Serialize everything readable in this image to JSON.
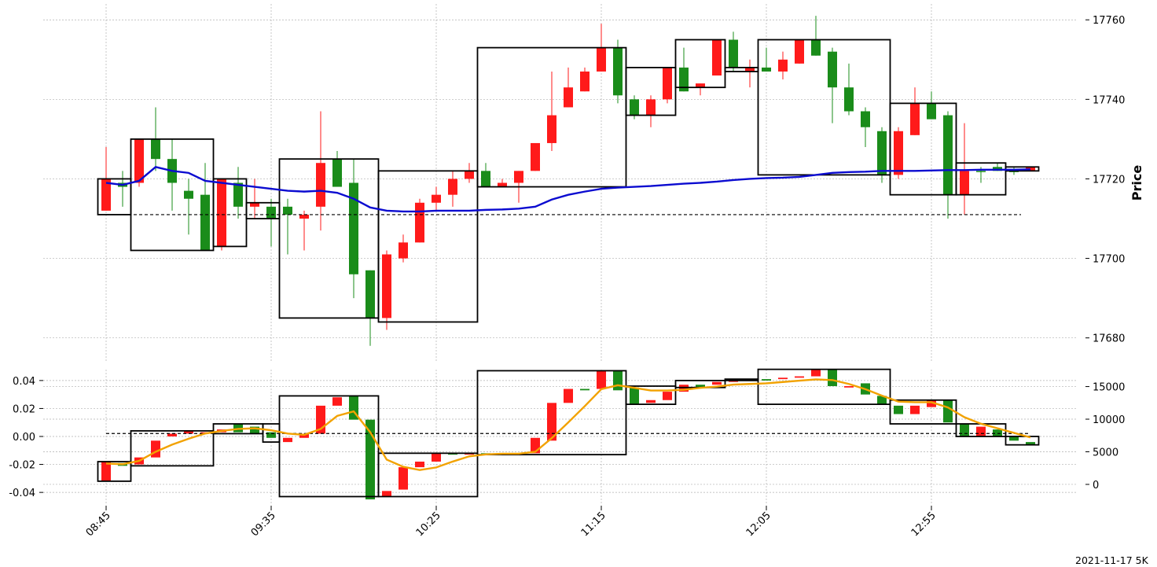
{
  "footer_label": "2021-11-17 5K",
  "colors": {
    "up": "#1a8c1a",
    "down": "#ff1a1a",
    "ma_price": "#0b0bd0",
    "ma_lower": "#f2a200",
    "box": "#000000",
    "grid": "#b0b0b0"
  },
  "chart_data": [
    {
      "type": "candlestick",
      "ylabel": "Price",
      "ylim": [
        17674,
        17764
      ],
      "y_ticks": [
        17680,
        17700,
        17720,
        17740,
        17760
      ],
      "x_ticks": [
        {
          "index": 0,
          "label": "08:45"
        },
        {
          "index": 10,
          "label": "09:35"
        },
        {
          "index": 20,
          "label": "10:25"
        },
        {
          "index": 30,
          "label": "11:15"
        },
        {
          "index": 40,
          "label": "12:05"
        },
        {
          "index": 50,
          "label": "12:55"
        }
      ],
      "grid": true,
      "candles": [
        {
          "o": 17720,
          "c": 17712,
          "h": 17728,
          "l": 17712,
          "dir": "down"
        },
        {
          "o": 17718,
          "c": 17719,
          "h": 17722,
          "l": 17713,
          "dir": "up"
        },
        {
          "o": 17730,
          "c": 17719,
          "h": 17730,
          "l": 17718,
          "dir": "down"
        },
        {
          "o": 17730,
          "c": 17725,
          "h": 17738,
          "l": 17722,
          "dir": "up"
        },
        {
          "o": 17725,
          "c": 17719,
          "h": 17730,
          "l": 17712,
          "dir": "up"
        },
        {
          "o": 17717,
          "c": 17715,
          "h": 17720,
          "l": 17706,
          "dir": "up"
        },
        {
          "o": 17716,
          "c": 17702,
          "h": 17724,
          "l": 17702,
          "dir": "up"
        },
        {
          "o": 17720,
          "c": 17703,
          "h": 17720,
          "l": 17702,
          "dir": "down"
        },
        {
          "o": 17719,
          "c": 17713,
          "h": 17723,
          "l": 17710,
          "dir": "up"
        },
        {
          "o": 17714,
          "c": 17713,
          "h": 17720,
          "l": 17710,
          "dir": "down"
        },
        {
          "o": 17713,
          "c": 17710,
          "h": 17715,
          "l": 17703,
          "dir": "up"
        },
        {
          "o": 17713,
          "c": 17711,
          "h": 17715,
          "l": 17701,
          "dir": "up"
        },
        {
          "o": 17711,
          "c": 17710,
          "h": 17712,
          "l": 17702,
          "dir": "down"
        },
        {
          "o": 17713,
          "c": 17724,
          "h": 17737,
          "l": 17707,
          "dir": "down"
        },
        {
          "o": 17725,
          "c": 17718,
          "h": 17727,
          "l": 17718,
          "dir": "up"
        },
        {
          "o": 17719,
          "c": 17696,
          "h": 17725,
          "l": 17690,
          "dir": "up"
        },
        {
          "o": 17697,
          "c": 17685,
          "h": 17697,
          "l": 17678,
          "dir": "up"
        },
        {
          "o": 17685,
          "c": 17701,
          "h": 17702,
          "l": 17682,
          "dir": "down"
        },
        {
          "o": 17700,
          "c": 17704,
          "h": 17706,
          "l": 17699,
          "dir": "down"
        },
        {
          "o": 17704,
          "c": 17714,
          "h": 17715,
          "l": 17704,
          "dir": "down"
        },
        {
          "o": 17714,
          "c": 17716,
          "h": 17718,
          "l": 17712,
          "dir": "down"
        },
        {
          "o": 17716,
          "c": 17720,
          "h": 17722,
          "l": 17713,
          "dir": "down"
        },
        {
          "o": 17720,
          "c": 17722,
          "h": 17724,
          "l": 17719,
          "dir": "down"
        },
        {
          "o": 17722,
          "c": 17718,
          "h": 17724,
          "l": 17718,
          "dir": "up"
        },
        {
          "o": 17718,
          "c": 17719,
          "h": 17720,
          "l": 17718,
          "dir": "down"
        },
        {
          "o": 17719,
          "c": 17722,
          "h": 17722,
          "l": 17714,
          "dir": "down"
        },
        {
          "o": 17722,
          "c": 17729,
          "h": 17729,
          "l": 17722,
          "dir": "down"
        },
        {
          "o": 17729,
          "c": 17736,
          "h": 17747,
          "l": 17727,
          "dir": "down"
        },
        {
          "o": 17738,
          "c": 17743,
          "h": 17748,
          "l": 17738,
          "dir": "down"
        },
        {
          "o": 17742,
          "c": 17747,
          "h": 17748,
          "l": 17742,
          "dir": "down"
        },
        {
          "o": 17747,
          "c": 17753,
          "h": 17759,
          "l": 17747,
          "dir": "down"
        },
        {
          "o": 17753,
          "c": 17741,
          "h": 17755,
          "l": 17739,
          "dir": "up"
        },
        {
          "o": 17740,
          "c": 17736,
          "h": 17741,
          "l": 17735,
          "dir": "up"
        },
        {
          "o": 17736,
          "c": 17740,
          "h": 17741,
          "l": 17733,
          "dir": "down"
        },
        {
          "o": 17740,
          "c": 17748,
          "h": 17748,
          "l": 17739,
          "dir": "down"
        },
        {
          "o": 17748,
          "c": 17742,
          "h": 17753,
          "l": 17742,
          "dir": "up"
        },
        {
          "o": 17743,
          "c": 17744,
          "h": 17744,
          "l": 17741,
          "dir": "down"
        },
        {
          "o": 17746,
          "c": 17755,
          "h": 17755,
          "l": 17746,
          "dir": "down"
        },
        {
          "o": 17755,
          "c": 17748,
          "h": 17757,
          "l": 17747,
          "dir": "up"
        },
        {
          "o": 17748,
          "c": 17747,
          "h": 17750,
          "l": 17743,
          "dir": "down"
        },
        {
          "o": 17748,
          "c": 17747,
          "h": 17753,
          "l": 17747,
          "dir": "up"
        },
        {
          "o": 17747,
          "c": 17750,
          "h": 17752,
          "l": 17745,
          "dir": "down"
        },
        {
          "o": 17749,
          "c": 17755,
          "h": 17755,
          "l": 17749,
          "dir": "down"
        },
        {
          "o": 17755,
          "c": 17751,
          "h": 17761,
          "l": 17751,
          "dir": "up"
        },
        {
          "o": 17752,
          "c": 17743,
          "h": 17753,
          "l": 17734,
          "dir": "up"
        },
        {
          "o": 17743,
          "c": 17737,
          "h": 17749,
          "l": 17736,
          "dir": "up"
        },
        {
          "o": 17737,
          "c": 17733,
          "h": 17738,
          "l": 17728,
          "dir": "up"
        },
        {
          "o": 17732,
          "c": 17721,
          "h": 17733,
          "l": 17719,
          "dir": "up"
        },
        {
          "o": 17721,
          "c": 17732,
          "h": 17733,
          "l": 17720,
          "dir": "down"
        },
        {
          "o": 17731,
          "c": 17739,
          "h": 17743,
          "l": 17731,
          "dir": "down"
        },
        {
          "o": 17739,
          "c": 17735,
          "h": 17742,
          "l": 17735,
          "dir": "up"
        },
        {
          "o": 17736,
          "c": 17716,
          "h": 17737,
          "l": 17710,
          "dir": "up"
        },
        {
          "o": 17716,
          "c": 17722,
          "h": 17734,
          "l": 17711,
          "dir": "down"
        },
        {
          "o": 17722,
          "c": 17722,
          "h": 17723,
          "l": 17719,
          "dir": "up"
        },
        {
          "o": 17723,
          "c": 17722,
          "h": 17724,
          "l": 17722,
          "dir": "up"
        },
        {
          "o": 17722,
          "c": 17722,
          "h": 17723,
          "l": 17721,
          "dir": "up"
        },
        {
          "o": 17722,
          "c": 17723,
          "h": 17723,
          "l": 17722,
          "dir": "down"
        }
      ],
      "moving_average": [
        17719,
        17718.5,
        17719.5,
        17723,
        17722,
        17721.5,
        17719.5,
        17719,
        17718.5,
        17718,
        17717.5,
        17717,
        17716.8,
        17717,
        17716.5,
        17715,
        17712.8,
        17712,
        17711.8,
        17711.8,
        17712,
        17712,
        17712,
        17712.2,
        17712.3,
        17712.5,
        17713,
        17714.8,
        17716,
        17716.8,
        17717.5,
        17717.8,
        17718,
        17718.2,
        17718.5,
        17718.8,
        17719,
        17719.3,
        17719.7,
        17720,
        17720.2,
        17720.3,
        17720.5,
        17721,
        17721.5,
        17721.7,
        17721.8,
        17722,
        17722,
        17722,
        17722.1,
        17722.2,
        17722.2,
        17722.3,
        17722.3,
        17722.3,
        17722.4
      ],
      "reference_line": 17711,
      "boxes": [
        {
          "i0": 0,
          "i1": 1,
          "top": 17720,
          "bottom": 17711
        },
        {
          "i0": 2,
          "i1": 6,
          "top": 17730,
          "bottom": 17702
        },
        {
          "i0": 7,
          "i1": 8,
          "top": 17720,
          "bottom": 17703
        },
        {
          "i0": 9,
          "i1": 10,
          "top": 17714,
          "bottom": 17710
        },
        {
          "i0": 11,
          "i1": 16,
          "top": 17725,
          "bottom": 17685
        },
        {
          "i0": 17,
          "i1": 22,
          "top": 17722,
          "bottom": 17684
        },
        {
          "i0": 23,
          "i1": 31,
          "top": 17753,
          "bottom": 17718
        },
        {
          "i0": 32,
          "i1": 34,
          "top": 17748,
          "bottom": 17736
        },
        {
          "i0": 35,
          "i1": 37,
          "top": 17755,
          "bottom": 17743
        },
        {
          "i0": 38,
          "i1": 39,
          "top": 17748,
          "bottom": 17747
        },
        {
          "i0": 40,
          "i1": 47,
          "top": 17755,
          "bottom": 17721
        },
        {
          "i0": 48,
          "i1": 51,
          "top": 17739,
          "bottom": 17716
        },
        {
          "i0": 52,
          "i1": 54,
          "top": 17724,
          "bottom": 17716
        },
        {
          "i0": 55,
          "i1": 56,
          "top": 17723,
          "bottom": 17722
        }
      ]
    },
    {
      "type": "bar",
      "ylim_left": [
        -0.0478,
        0.0478
      ],
      "y_ticks_left": [
        -0.04,
        -0.02,
        0.0,
        0.02,
        0.04
      ],
      "ylim_right": [
        -2900,
        17600
      ],
      "y_ticks_right": [
        0,
        5000,
        10000,
        15000
      ],
      "grid": true,
      "bars": [
        {
          "o": -0.018,
          "c": -0.032,
          "dir": "down"
        },
        {
          "o": -0.021,
          "c": -0.019,
          "dir": "up"
        },
        {
          "o": -0.015,
          "c": -0.02,
          "dir": "down"
        },
        {
          "o": -0.003,
          "c": -0.015,
          "dir": "down"
        },
        {
          "o": 0.002,
          "c": 0.0,
          "dir": "down"
        },
        {
          "o": 0.004,
          "c": 0.002,
          "dir": "down"
        },
        {
          "o": 0.003,
          "c": 0.002,
          "dir": "down"
        },
        {
          "o": 0.005,
          "c": 0.003,
          "dir": "down"
        },
        {
          "o": 0.009,
          "c": 0.003,
          "dir": "up"
        },
        {
          "o": 0.007,
          "c": 0.002,
          "dir": "up"
        },
        {
          "o": 0.003,
          "c": -0.001,
          "dir": "up"
        },
        {
          "o": -0.001,
          "c": -0.004,
          "dir": "down"
        },
        {
          "o": 0.002,
          "c": -0.001,
          "dir": "down"
        },
        {
          "o": 0.022,
          "c": 0.002,
          "dir": "down"
        },
        {
          "o": 0.028,
          "c": 0.022,
          "dir": "down"
        },
        {
          "o": 0.029,
          "c": 0.012,
          "dir": "up"
        },
        {
          "o": 0.012,
          "c": -0.045,
          "dir": "up"
        },
        {
          "o": -0.039,
          "c": -0.043,
          "dir": "down"
        },
        {
          "o": -0.022,
          "c": -0.038,
          "dir": "down"
        },
        {
          "o": -0.018,
          "c": -0.022,
          "dir": "down"
        },
        {
          "o": -0.012,
          "c": -0.018,
          "dir": "down"
        },
        {
          "o": -0.012,
          "c": -0.013,
          "dir": "up"
        },
        {
          "o": -0.012,
          "c": -0.013,
          "dir": "down"
        },
        {
          "o": -0.012,
          "c": -0.013,
          "dir": "up"
        },
        {
          "o": -0.012,
          "c": -0.013,
          "dir": "down"
        },
        {
          "o": -0.012,
          "c": -0.013,
          "dir": "down"
        },
        {
          "o": -0.001,
          "c": -0.012,
          "dir": "down"
        },
        {
          "o": 0.024,
          "c": -0.003,
          "dir": "down"
        },
        {
          "o": 0.034,
          "c": 0.024,
          "dir": "down"
        },
        {
          "o": 0.034,
          "c": 0.033,
          "dir": "up"
        },
        {
          "o": 0.047,
          "c": 0.034,
          "dir": "down"
        },
        {
          "o": 0.047,
          "c": 0.033,
          "dir": "up"
        },
        {
          "o": 0.035,
          "c": 0.023,
          "dir": "up"
        },
        {
          "o": 0.026,
          "c": 0.024,
          "dir": "down"
        },
        {
          "o": 0.032,
          "c": 0.026,
          "dir": "down"
        },
        {
          "o": 0.037,
          "c": 0.032,
          "dir": "down"
        },
        {
          "o": 0.037,
          "c": 0.035,
          "dir": "up"
        },
        {
          "o": 0.039,
          "c": 0.037,
          "dir": "down"
        },
        {
          "o": 0.04,
          "c": 0.039,
          "dir": "down"
        },
        {
          "o": 0.041,
          "c": 0.04,
          "dir": "down"
        },
        {
          "o": 0.041,
          "c": 0.04,
          "dir": "up"
        },
        {
          "o": 0.042,
          "c": 0.041,
          "dir": "down"
        },
        {
          "o": 0.043,
          "c": 0.042,
          "dir": "down"
        },
        {
          "o": 0.048,
          "c": 0.043,
          "dir": "down"
        },
        {
          "o": 0.048,
          "c": 0.036,
          "dir": "up"
        },
        {
          "o": 0.036,
          "c": 0.035,
          "dir": "down"
        },
        {
          "o": 0.038,
          "c": 0.03,
          "dir": "up"
        },
        {
          "o": 0.029,
          "c": 0.023,
          "dir": "up"
        },
        {
          "o": 0.022,
          "c": 0.016,
          "dir": "up"
        },
        {
          "o": 0.022,
          "c": 0.016,
          "dir": "down"
        },
        {
          "o": 0.026,
          "c": 0.021,
          "dir": "down"
        },
        {
          "o": 0.026,
          "c": 0.01,
          "dir": "up"
        },
        {
          "o": 0.009,
          "c": 0.0,
          "dir": "up"
        },
        {
          "o": 0.007,
          "c": 0.0,
          "dir": "down"
        },
        {
          "o": 0.005,
          "c": 0.0,
          "dir": "up"
        },
        {
          "o": 0.0,
          "c": -0.003,
          "dir": "up"
        },
        {
          "o": -0.004,
          "c": -0.006,
          "dir": "up"
        }
      ],
      "moving_average_right": [
        3200,
        3100,
        3600,
        5000,
        6100,
        7000,
        7800,
        8200,
        8500,
        8600,
        8300,
        7800,
        7600,
        8500,
        10500,
        11200,
        8000,
        3800,
        2700,
        2200,
        2600,
        3500,
        4300,
        4600,
        4700,
        4700,
        5000,
        7100,
        9500,
        12000,
        14600,
        15200,
        14800,
        14400,
        14400,
        14500,
        14800,
        15000,
        15300,
        15400,
        15500,
        15700,
        15900,
        16100,
        16000,
        15400,
        14600,
        13600,
        12700,
        12600,
        12600,
        11800,
        10300,
        9300,
        8600,
        7900,
        7200
      ],
      "reference_line_right": 7800,
      "boxes": [
        {
          "i0": 0,
          "i1": 1,
          "top": -0.018,
          "bottom": -0.032
        },
        {
          "i0": 2,
          "i1": 6,
          "top": 0.004,
          "bottom": -0.021
        },
        {
          "i0": 7,
          "i1": 9,
          "top": 0.009,
          "bottom": 0.002
        },
        {
          "i0": 10,
          "i1": 10,
          "top": 0.009,
          "bottom": -0.004
        },
        {
          "i0": 11,
          "i1": 16,
          "top": 0.029,
          "bottom": -0.043
        },
        {
          "i0": 17,
          "i1": 22,
          "top": -0.012,
          "bottom": -0.043
        },
        {
          "i0": 23,
          "i1": 31,
          "top": 0.047,
          "bottom": -0.013
        },
        {
          "i0": 32,
          "i1": 34,
          "top": 0.036,
          "bottom": 0.023
        },
        {
          "i0": 35,
          "i1": 37,
          "top": 0.04,
          "bottom": 0.035
        },
        {
          "i0": 38,
          "i1": 39,
          "top": 0.041,
          "bottom": 0.04
        },
        {
          "i0": 40,
          "i1": 47,
          "top": 0.048,
          "bottom": 0.023
        },
        {
          "i0": 48,
          "i1": 51,
          "top": 0.026,
          "bottom": 0.009
        },
        {
          "i0": 52,
          "i1": 54,
          "top": 0.009,
          "bottom": 0.0
        },
        {
          "i0": 55,
          "i1": 56,
          "top": 0.0,
          "bottom": -0.006
        }
      ]
    }
  ]
}
